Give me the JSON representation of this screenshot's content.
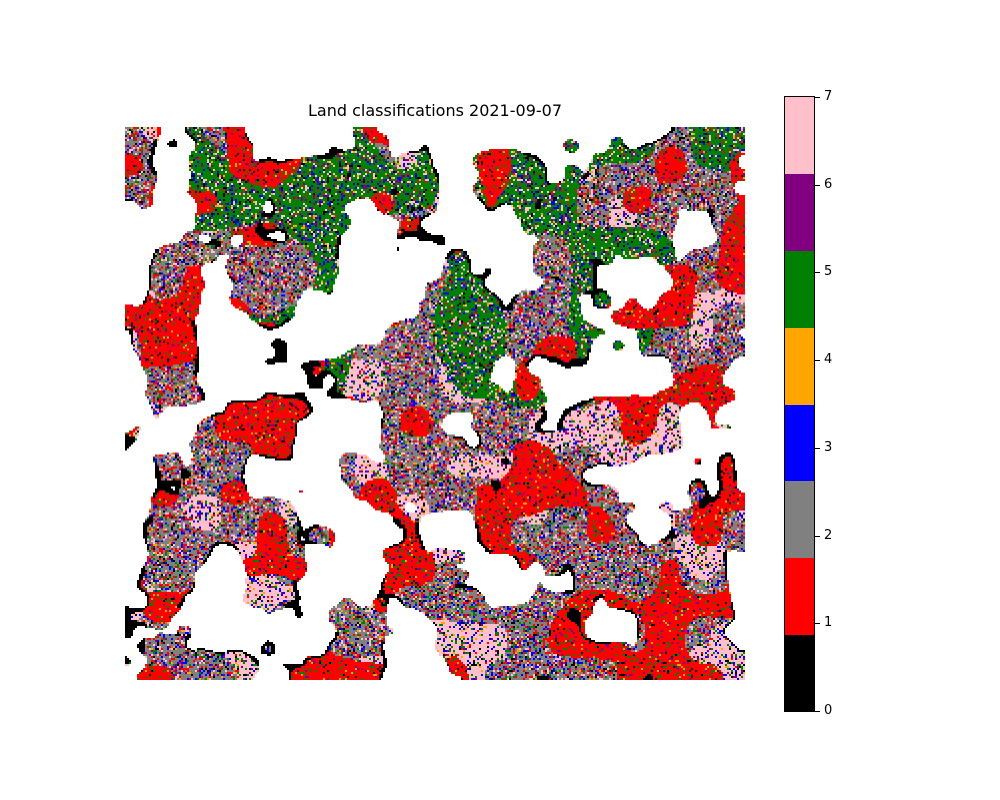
{
  "chart_data": {
    "type": "heatmap",
    "title": "Land classifications 2021-09-07",
    "grid": false,
    "legend_placement": "right colorbar",
    "colorbar": {
      "range": [
        0,
        7
      ],
      "ticks": [
        "0",
        "1",
        "2",
        "3",
        "4",
        "5",
        "6",
        "7"
      ],
      "class_colors": [
        "#000000",
        "#ff0000",
        "#808080",
        "#0000ff",
        "#ffa500",
        "#008000",
        "#800080",
        "#ffc0cb"
      ]
    },
    "cloud_mask_color": "#ffffff"
  }
}
